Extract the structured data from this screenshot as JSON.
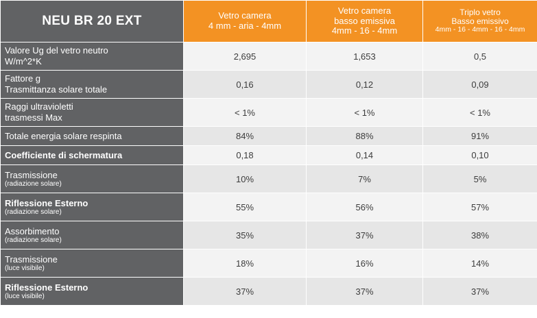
{
  "header": {
    "title": "NEU BR 20 EXT",
    "columns": [
      {
        "line1": "Vetro camera",
        "line2": "4 mm - aria - 4mm",
        "line3": ""
      },
      {
        "line1": "Vetro camera",
        "line2": "basso emissiva",
        "line3": "4mm - 16 - 4mm"
      },
      {
        "line1": "Triplo vetro",
        "line2": "Basso emissivo",
        "line3": "4mm - 16 - 4mm - 16 - 4mm"
      }
    ]
  },
  "rows": [
    {
      "label": "Valore Ug del vetro neutro",
      "label2": "W/m^2*K",
      "values": [
        "2,695",
        "1,653",
        "0,5"
      ]
    },
    {
      "label": "Fattore g",
      "label2": "Trasmittanza solare totale",
      "values": [
        "0,16",
        "0,12",
        "0,09"
      ]
    },
    {
      "label": "Raggi ultravioletti",
      "label2": "trasmessi Max",
      "values": [
        "< 1%",
        "< 1%",
        "< 1%"
      ]
    },
    {
      "label": "Totale energia solare respinta",
      "label2": "",
      "values": [
        "84%",
        "88%",
        "91%"
      ]
    },
    {
      "label": "Coefficiente di schermatura",
      "label2": "",
      "values": [
        "0,18",
        "0,14",
        "0,10"
      ]
    },
    {
      "label": "Trasmissione",
      "label2": "(radiazione solare)",
      "values": [
        "10%",
        "7%",
        "5%"
      ]
    },
    {
      "label": "Riflessione Esterno",
      "label2": "(radiazione solare)",
      "values": [
        "55%",
        "56%",
        "57%"
      ]
    },
    {
      "label": "Assorbimento",
      "label2": "(radiazione solare)",
      "values": [
        "35%",
        "37%",
        "38%"
      ]
    },
    {
      "label": "Trasmissione",
      "label2": "(luce visibile)",
      "values": [
        "18%",
        "16%",
        "14%"
      ]
    },
    {
      "label": "Riflessione Esterno",
      "label2": "(luce visibile)",
      "values": [
        "37%",
        "37%",
        "37%"
      ]
    }
  ]
}
